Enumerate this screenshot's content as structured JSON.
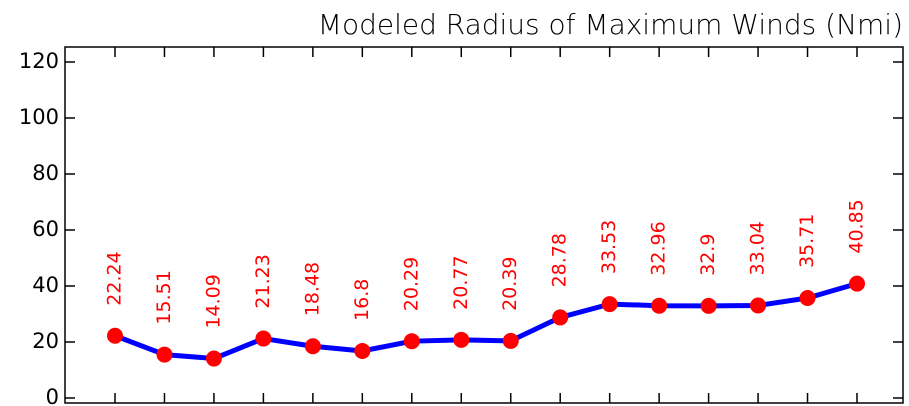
{
  "chart_data": {
    "type": "line",
    "title": "Modeled Radius of Maximum Winds (Nmi)",
    "categories": [
      null,
      null,
      null,
      null,
      null,
      null,
      null,
      null,
      null,
      null,
      null,
      null,
      null,
      null,
      null,
      null
    ],
    "series": [
      {
        "color": "#0000ff",
        "marker_color": "#ff0000",
        "values": [
          22.24,
          15.51,
          14.09,
          21.23,
          18.48,
          16.8,
          20.29,
          20.77,
          20.39,
          28.78,
          33.53,
          32.96,
          32.9,
          33.04,
          35.71,
          40.85
        ]
      }
    ],
    "ylim": [
      0,
      125
    ],
    "yticks": [
      0,
      20,
      40,
      60,
      80,
      100,
      120
    ],
    "grid": false
  }
}
